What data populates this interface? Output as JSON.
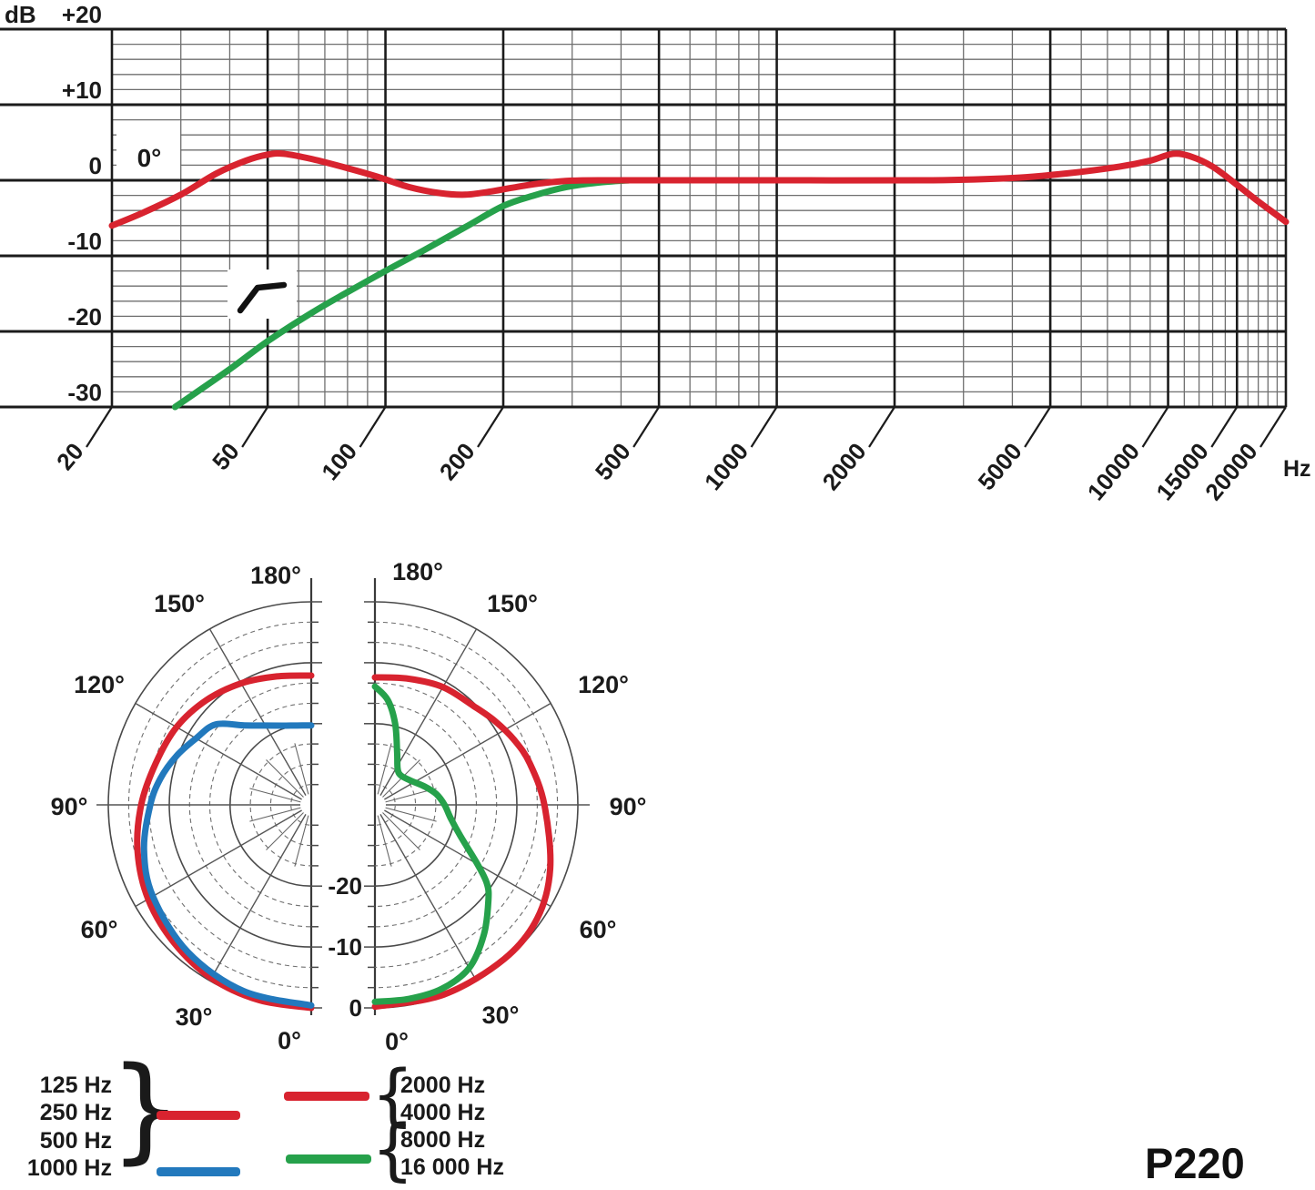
{
  "fr_header": {
    "db_label": "dB"
  },
  "hz_label": "Hz",
  "model": "P220",
  "chart_data": [
    {
      "type": "line",
      "name": "frequency-response",
      "x_unit": "Hz",
      "y_unit": "dB",
      "x_scale": "log",
      "xlim": [
        20,
        20000
      ],
      "ylim": [
        -30,
        20
      ],
      "x_ticks": [
        20,
        50,
        100,
        200,
        500,
        1000,
        2000,
        5000,
        10000,
        15000,
        20000
      ],
      "x_tick_labels": [
        "20",
        "50",
        "100",
        "200",
        "500",
        "1000",
        "2000",
        "5000",
        "10000",
        "15000",
        "20000"
      ],
      "x_minor_ticks": [
        30,
        40,
        60,
        70,
        80,
        90,
        300,
        400,
        600,
        700,
        800,
        900,
        3000,
        4000,
        6000,
        7000,
        8000,
        9000,
        11000,
        12000,
        13000,
        14000,
        16000,
        17000,
        18000,
        19000
      ],
      "y_major_step": 10,
      "y_minor_step": 2,
      "y_tick_labels": {
        "20": "+20",
        "10": "+10",
        "0": "0",
        "-10": "-10",
        "-20": "-20",
        "-30": "-30"
      },
      "annotation_on_axis": "0°",
      "annotation_icon": "bass-cut-filter-icon",
      "series": [
        {
          "name": "0° on-axis response",
          "color": "#d8232f",
          "points": [
            [
              20,
              -6
            ],
            [
              24,
              -4.3
            ],
            [
              30,
              -1.9
            ],
            [
              37,
              0.9
            ],
            [
              44,
              2.6
            ],
            [
              50,
              3.4
            ],
            [
              55,
              3.5
            ],
            [
              65,
              2.8
            ],
            [
              80,
              1.6
            ],
            [
              95,
              0.5
            ],
            [
              115,
              -0.9
            ],
            [
              138,
              -1.7
            ],
            [
              160,
              -1.9
            ],
            [
              185,
              -1.5
            ],
            [
              210,
              -1.0
            ],
            [
              250,
              -0.4
            ],
            [
              300,
              -0.05
            ],
            [
              400,
              0
            ],
            [
              1000,
              0
            ],
            [
              2500,
              0
            ],
            [
              4000,
              0.3
            ],
            [
              5500,
              0.9
            ],
            [
              7500,
              1.8
            ],
            [
              9000,
              2.6
            ],
            [
              10300,
              3.5
            ],
            [
              11500,
              3.1
            ],
            [
              13000,
              1.8
            ],
            [
              15000,
              -0.6
            ],
            [
              17000,
              -2.8
            ],
            [
              20000,
              -5.5
            ]
          ]
        },
        {
          "name": "bass-cut filter response",
          "color": "#26a14b",
          "points": [
            [
              29,
              -30
            ],
            [
              40,
              -25
            ],
            [
              50,
              -21.3
            ],
            [
              65,
              -17.5
            ],
            [
              80,
              -14.8
            ],
            [
              100,
              -12
            ],
            [
              125,
              -9.3
            ],
            [
              160,
              -6.2
            ],
            [
              200,
              -3.4
            ],
            [
              240,
              -2.0
            ],
            [
              290,
              -0.9
            ],
            [
              350,
              -0.3
            ],
            [
              420,
              0
            ]
          ]
        }
      ]
    },
    {
      "type": "polar",
      "name": "polar-pattern",
      "rings": 10,
      "ring_step_db": 3.333,
      "outer_db": 0,
      "ring_labels": [
        {
          "db": 0,
          "label": "0"
        },
        {
          "db": -10,
          "label": "-10"
        },
        {
          "db": -20,
          "label": "-20"
        }
      ],
      "angle_labels": [
        "0°",
        "30°",
        "60°",
        "90°",
        "120°",
        "150°",
        "180°"
      ],
      "series": [
        {
          "name": "125-500 Hz",
          "side": "left",
          "color": "#d8232f",
          "points_deg_db": [
            [
              0,
              0
            ],
            [
              15,
              -0.15
            ],
            [
              30,
              -0.5
            ],
            [
              45,
              -1.4
            ],
            [
              60,
              -2.4
            ],
            [
              75,
              -3.8
            ],
            [
              90,
              -5.4
            ],
            [
              105,
              -6.9
            ],
            [
              120,
              -7.8
            ],
            [
              135,
              -9.0
            ],
            [
              150,
              -10.3
            ],
            [
              165,
              -11.5
            ],
            [
              180,
              -12.1
            ]
          ]
        },
        {
          "name": "1000 Hz",
          "side": "left",
          "color": "#2279bd",
          "points_deg_db": [
            [
              0,
              -0.4
            ],
            [
              20,
              -0.8
            ],
            [
              40,
              -1.8
            ],
            [
              60,
              -3.3
            ],
            [
              75,
              -4.9
            ],
            [
              90,
              -6.9
            ],
            [
              100,
              -8.2
            ],
            [
              110,
              -9.8
            ],
            [
              120,
              -11.5
            ],
            [
              130,
              -12.8
            ],
            [
              140,
              -16.3
            ],
            [
              150,
              -18.3
            ],
            [
              160,
              -19.5
            ],
            [
              170,
              -20.1
            ],
            [
              180,
              -20.3
            ]
          ]
        },
        {
          "name": "2000-4000 Hz",
          "side": "right",
          "color": "#d8232f",
          "points_deg_db": [
            [
              0,
              -0.2
            ],
            [
              20,
              -0.2
            ],
            [
              40,
              -0.3
            ],
            [
              55,
              -0.8
            ],
            [
              70,
              -2.7
            ],
            [
              90,
              -5.5
            ],
            [
              105,
              -7.0
            ],
            [
              115,
              -8.1
            ],
            [
              125,
              -9.3
            ],
            [
              135,
              -10.4
            ],
            [
              150,
              -11.0
            ],
            [
              165,
              -11.9
            ],
            [
              180,
              -12.4
            ]
          ]
        },
        {
          "name": "8000-16000 Hz",
          "side": "right",
          "color": "#26a14b",
          "points_deg_db": [
            [
              0,
              -1.0
            ],
            [
              10,
              -1.0
            ],
            [
              20,
              -1.2
            ],
            [
              30,
              -2.4
            ],
            [
              40,
              -5.5
            ],
            [
              50,
              -9.0
            ],
            [
              55,
              -10.9
            ],
            [
              60,
              -13.9
            ],
            [
              70,
              -18.4
            ],
            [
              80,
              -20.7
            ],
            [
              90,
              -21.9
            ],
            [
              100,
              -23.1
            ],
            [
              110,
              -24.6
            ],
            [
              125,
              -26.3
            ],
            [
              139,
              -26.9
            ],
            [
              148,
              -26.3
            ],
            [
              157,
              -24.0
            ],
            [
              166,
              -19.6
            ],
            [
              173,
              -16.0
            ],
            [
              180,
              -13.9
            ]
          ]
        }
      ]
    }
  ],
  "legend": {
    "brace_left": "}",
    "brace_right1": "{",
    "brace_right2": "{",
    "row1": "125 Hz",
    "row2": "250 Hz",
    "row3": "500 Hz",
    "row4": "1000 Hz",
    "row5": "2000 Hz",
    "row6": "4000 Hz",
    "row7": "8000 Hz",
    "row8": "16 000 Hz"
  }
}
